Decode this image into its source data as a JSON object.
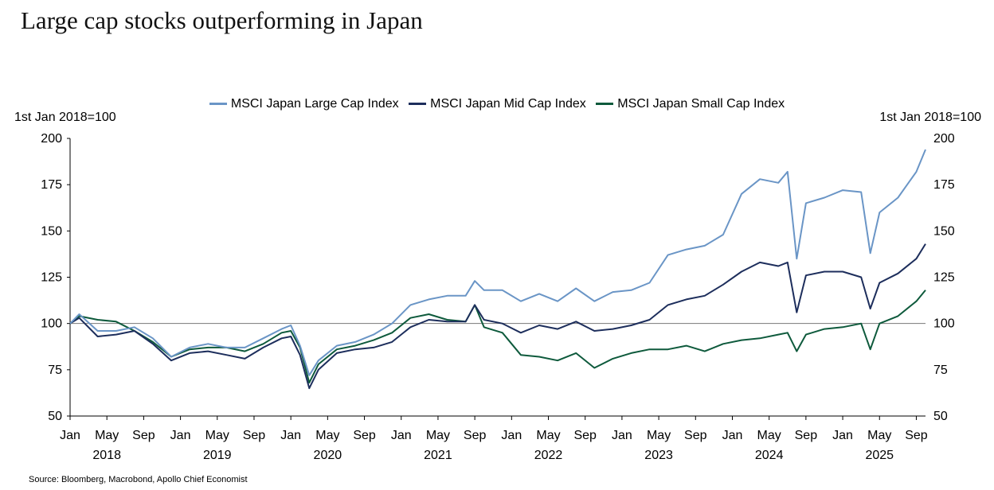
{
  "title": "Large cap stocks outperforming in Japan",
  "source": "Source: Bloomberg, Macrobond, Apollo Chief Economist",
  "chart_data": {
    "type": "line",
    "title": "Large cap stocks outperforming in Japan",
    "y_unit_left": "1st Jan 2018=100",
    "y_unit_right": "1st Jan 2018=100",
    "ylim": [
      50,
      200
    ],
    "y_ticks": [
      50,
      75,
      100,
      125,
      150,
      175,
      200
    ],
    "reference_line": 100,
    "x_range": [
      "2018-01",
      "2025-10"
    ],
    "x_month_ticks": [
      "Jan",
      "May",
      "Sep"
    ],
    "x_year_labels": [
      "2018",
      "2019",
      "2020",
      "2021",
      "2022",
      "2023",
      "2024",
      "2025"
    ],
    "grid": false,
    "legend": "top-center",
    "x": [
      "2018-01",
      "2018-02",
      "2018-04",
      "2018-06",
      "2018-08",
      "2018-10",
      "2018-12",
      "2019-02",
      "2019-04",
      "2019-06",
      "2019-08",
      "2019-10",
      "2019-12",
      "2020-01",
      "2020-02",
      "2020-03",
      "2020-04",
      "2020-06",
      "2020-08",
      "2020-10",
      "2020-12",
      "2021-02",
      "2021-04",
      "2021-06",
      "2021-08",
      "2021-09",
      "2021-10",
      "2021-12",
      "2022-02",
      "2022-04",
      "2022-06",
      "2022-08",
      "2022-10",
      "2022-12",
      "2023-02",
      "2023-04",
      "2023-06",
      "2023-08",
      "2023-10",
      "2023-12",
      "2024-02",
      "2024-04",
      "2024-06",
      "2024-07",
      "2024-08",
      "2024-09",
      "2024-11",
      "2025-01",
      "2025-03",
      "2025-04",
      "2025-05",
      "2025-07",
      "2025-09",
      "2025-10"
    ],
    "series": [
      {
        "name": "MSCI Japan Large Cap Index",
        "color": "#6a95c6",
        "values": [
          100,
          105,
          96,
          96,
          98,
          92,
          82,
          87,
          89,
          87,
          87,
          92,
          97,
          99,
          88,
          72,
          80,
          88,
          90,
          94,
          100,
          110,
          113,
          115,
          115,
          123,
          118,
          118,
          112,
          116,
          112,
          119,
          112,
          117,
          118,
          122,
          137,
          140,
          142,
          148,
          170,
          178,
          176,
          182,
          135,
          165,
          168,
          172,
          171,
          138,
          160,
          168,
          182,
          194
        ]
      },
      {
        "name": "MSCI Japan Mid Cap Index",
        "color": "#1d2e5c",
        "values": [
          100,
          103,
          93,
          94,
          96,
          89,
          80,
          84,
          85,
          83,
          81,
          87,
          92,
          93,
          83,
          65,
          75,
          84,
          86,
          87,
          90,
          98,
          102,
          101,
          101,
          110,
          102,
          100,
          95,
          99,
          97,
          101,
          96,
          97,
          99,
          102,
          110,
          113,
          115,
          121,
          128,
          133,
          131,
          133,
          106,
          126,
          128,
          128,
          125,
          108,
          122,
          127,
          135,
          143
        ]
      },
      {
        "name": "MSCI Japan Small Cap Index",
        "color": "#0e5a3c",
        "values": [
          100,
          104,
          102,
          101,
          96,
          90,
          82,
          86,
          87,
          87,
          85,
          89,
          95,
          96,
          87,
          68,
          78,
          86,
          88,
          91,
          95,
          103,
          105,
          102,
          101,
          110,
          98,
          95,
          83,
          82,
          80,
          84,
          76,
          81,
          84,
          86,
          86,
          88,
          85,
          89,
          91,
          92,
          94,
          95,
          85,
          94,
          97,
          98,
          100,
          86,
          100,
          104,
          112,
          118
        ]
      }
    ]
  }
}
